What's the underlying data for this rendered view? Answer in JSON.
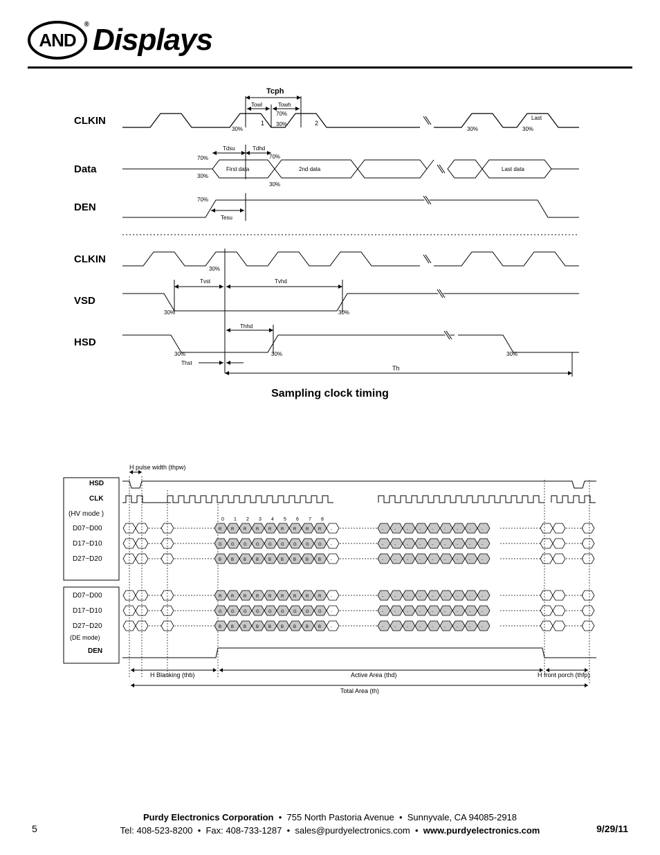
{
  "header": {
    "logo_text": "AND",
    "brand": "Displays",
    "trademark": "®"
  },
  "sampling_diagram": {
    "title": "Sampling clock timing",
    "signals": [
      "CLKIN",
      "Data",
      "DEN",
      "CLKIN",
      "VSD",
      "HSD"
    ],
    "timing_labels": {
      "tcph": "Tcph",
      "towl": "Towl",
      "towh": "Towh",
      "tdsu": "Tdsu",
      "tdhd": "Tdhd",
      "tesu": "Tesu",
      "tvst": "Tvst",
      "tvhd": "Tvhd",
      "thhd": "Thhd",
      "thst": "Thst",
      "th": "Th"
    },
    "thresholds": {
      "high": "70%",
      "low": "30%"
    },
    "data_labels": {
      "first": "First data",
      "second": "2nd data",
      "last": "Last data",
      "c1": "1",
      "c2": "2",
      "clast": "Last"
    },
    "colors": {
      "line": "#000000",
      "bg": "#ffffff",
      "dash": "#000000"
    }
  },
  "horizontal_diagram": {
    "top_label": "H pulse width (thpw)",
    "row_labels": [
      "HSD",
      "CLK",
      "(HV mode )",
      "D07~D00",
      "D17~D10",
      "D27~D20",
      "D07~D00",
      "D17~D10",
      "D27~D20",
      "(DE mode)",
      "DEN"
    ],
    "column_numbers": [
      "0",
      "1",
      "2",
      "3",
      "4",
      "5",
      "6",
      "7",
      "8"
    ],
    "cell_letters": {
      "r": "R",
      "g": "G",
      "b": "B",
      "dash": "-"
    },
    "bottom_labels": {
      "blanking": "H Blanking (thb)",
      "active": "Active Area (thd)",
      "front_porch": "H front porch (thfp)",
      "total": "Total Area (th)"
    },
    "colors": {
      "cell_fill": "#c8c8c8",
      "cell_stroke": "#000000",
      "line": "#000000"
    }
  },
  "footer": {
    "company": "Purdy Electronics Corporation",
    "address": "755 North Pastoria Avenue",
    "city": "Sunnyvale,  CA 94085-2918",
    "tel": "Tel: 408-523-8200",
    "fax": "Fax: 408-733-1287",
    "email": "sales@purdyelectronics.com",
    "web": "www.purdyelectronics.com",
    "page_number": "5",
    "date": "9/29/11",
    "bullet": "•"
  }
}
